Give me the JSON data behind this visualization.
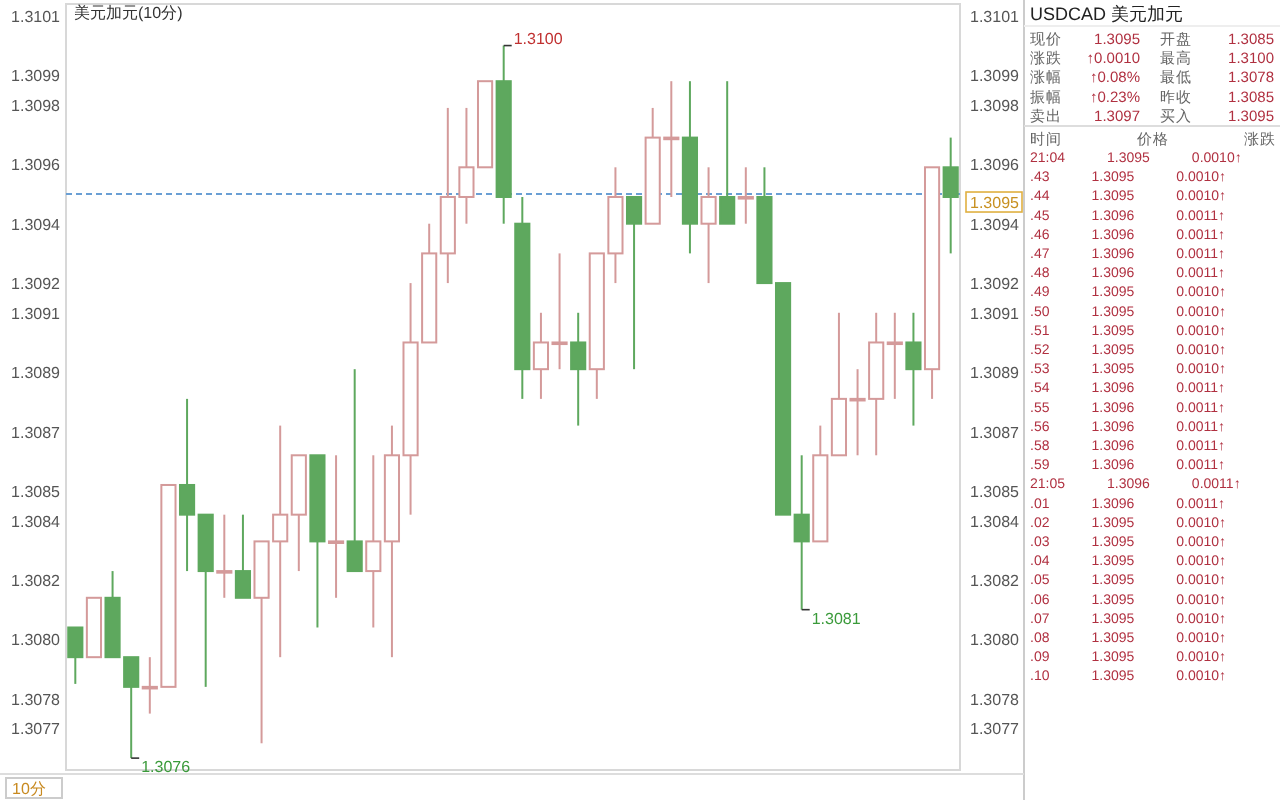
{
  "chart_data": [
    {
      "type": "candlestick",
      "title": "美元加元(10分)",
      "categories": [
        null,
        null,
        null,
        null,
        null,
        null,
        null,
        null,
        null,
        null,
        null,
        null,
        null,
        null,
        null,
        null,
        null,
        null,
        null,
        null,
        null,
        null,
        null,
        null,
        null,
        null,
        null,
        null,
        null,
        null,
        null,
        null,
        null,
        null,
        null,
        null,
        null,
        null,
        null,
        null,
        null,
        null,
        null,
        null,
        null,
        null,
        null,
        null
      ],
      "ohlc": [
        [
          1.30804,
          1.30804,
          1.30785,
          1.30794
        ],
        [
          1.30794,
          1.30814,
          1.30794,
          1.30814
        ],
        [
          1.30814,
          1.30823,
          1.30794,
          1.30794
        ],
        [
          1.30794,
          1.30794,
          1.3076,
          1.30784
        ],
        [
          1.30784,
          1.30794,
          1.30775,
          1.30784
        ],
        [
          1.30784,
          1.30852,
          1.30784,
          1.30852
        ],
        [
          1.30852,
          1.30881,
          1.30823,
          1.30842
        ],
        [
          1.30842,
          1.30842,
          1.30784,
          1.30823
        ],
        [
          1.30823,
          1.30842,
          1.30814,
          1.30823
        ],
        [
          1.30823,
          1.30842,
          1.30814,
          1.30814
        ],
        [
          1.30814,
          1.30833,
          1.30765,
          1.30833
        ],
        [
          1.30833,
          1.30872,
          1.30794,
          1.30842
        ],
        [
          1.30842,
          1.30862,
          1.30823,
          1.30862
        ],
        [
          1.30862,
          1.30862,
          1.30804,
          1.30833
        ],
        [
          1.30833,
          1.30862,
          1.30814,
          1.30833
        ],
        [
          1.30833,
          1.30891,
          1.30823,
          1.30823
        ],
        [
          1.30823,
          1.30862,
          1.30804,
          1.30833
        ],
        [
          1.30833,
          1.30872,
          1.30794,
          1.30862
        ],
        [
          1.30862,
          1.3092,
          1.30842,
          1.309
        ],
        [
          1.309,
          1.3094,
          1.309,
          1.3093
        ],
        [
          1.3093,
          1.30979,
          1.3092,
          1.30949
        ],
        [
          1.30949,
          1.30979,
          1.3094,
          1.30959
        ],
        [
          1.30959,
          1.30988,
          1.30959,
          1.30988
        ],
        [
          1.30988,
          1.31,
          1.3094,
          1.30949
        ],
        [
          1.3094,
          1.30949,
          1.30881,
          1.30891
        ],
        [
          1.30891,
          1.3091,
          1.30881,
          1.309
        ],
        [
          1.309,
          1.3093,
          1.30891,
          1.309
        ],
        [
          1.309,
          1.3091,
          1.30872,
          1.30891
        ],
        [
          1.30891,
          1.3093,
          1.30881,
          1.3093
        ],
        [
          1.3093,
          1.30959,
          1.3092,
          1.30949
        ],
        [
          1.30949,
          1.30949,
          1.30891,
          1.3094
        ],
        [
          1.3094,
          1.30979,
          1.3094,
          1.30969
        ],
        [
          1.30969,
          1.30988,
          1.30949,
          1.30969
        ],
        [
          1.30969,
          1.30988,
          1.3093,
          1.3094
        ],
        [
          1.3094,
          1.30959,
          1.3092,
          1.30949
        ],
        [
          1.30949,
          1.30988,
          1.3094,
          1.3094
        ],
        [
          1.30949,
          1.30959,
          1.3094,
          1.30949
        ],
        [
          1.30949,
          1.30959,
          1.3092,
          1.3092
        ],
        [
          1.3092,
          1.3092,
          1.30842,
          1.30842
        ],
        [
          1.30842,
          1.30862,
          1.3081,
          1.30833
        ],
        [
          1.30833,
          1.30872,
          1.30833,
          1.30862
        ],
        [
          1.30862,
          1.3091,
          1.30862,
          1.30881
        ],
        [
          1.30881,
          1.30891,
          1.30862,
          1.30881
        ],
        [
          1.30881,
          1.3091,
          1.30862,
          1.309
        ],
        [
          1.309,
          1.3091,
          1.30881,
          1.309
        ],
        [
          1.309,
          1.3091,
          1.30872,
          1.30891
        ],
        [
          1.30891,
          1.30959,
          1.30881,
          1.30959
        ],
        [
          1.30959,
          1.30969,
          1.3093,
          1.30949
        ]
      ],
      "ylim": [
        1.30756,
        1.31014
      ],
      "yticks": [
        1.3101,
        1.3099,
        1.3098,
        1.3096,
        1.3094,
        1.3092,
        1.3091,
        1.3089,
        1.3087,
        1.3085,
        1.3084,
        1.3082,
        {
          "value": 1.308,
          "label": "1.3080"
        },
        1.3078,
        1.3077
      ],
      "y2lim": [
        1.30756,
        1.31014
      ],
      "y2ticks": [
        1.3101,
        1.3099,
        1.3098,
        1.3096,
        1.3094,
        1.3092,
        1.3091,
        1.3089,
        1.3087,
        1.3085,
        1.3084,
        1.3082,
        {
          "value": 1.308,
          "label": "1.3080"
        },
        1.3078,
        1.3077
      ],
      "ref_lines": [
        {
          "axis": "y2",
          "value": 1.3095,
          "label": "1.3095",
          "color": "#6a9fd4",
          "line_style": "dashed"
        }
      ],
      "annotations": [
        "1.3100",
        "1.3076",
        "1.3081",
        "10分"
      ]
    },
    {
      "type": "other",
      "title": "USDCAD 美元加元",
      "annotations": [
        "现价",
        "1.3095",
        "开盘",
        "1.3085",
        "涨跌",
        "↑0.0010",
        "最高",
        "1.3100",
        "涨幅",
        "↑0.08%",
        "最低",
        "1.3078",
        "振幅",
        "↑0.23%",
        "昨收",
        "1.3085",
        "卖出",
        "1.3097",
        "买入",
        "1.3095",
        "时间 价格 涨跌",
        "21:04 1.3095 0.0010↑",
        ".43 1.3095 0.0010↑",
        ".44 1.3095 0.0010↑",
        ".45 1.3096 0.0011↑",
        ".46 1.3096 0.0011↑",
        ".47 1.3096 0.0011↑",
        ".48 1.3096 0.0011↑",
        ".49 1.3095 0.0010↑",
        ".50 1.3095 0.0010↑",
        ".51 1.3095 0.0010↑",
        ".52 1.3095 0.0010↑",
        ".53 1.3095 0.0010↑",
        ".54 1.3096 0.0011↑",
        ".55 1.3096 0.0011↑",
        ".56 1.3096 0.0011↑",
        ".58 1.3096 0.0011↑",
        ".59 1.3096 0.0011↑",
        "21:05 1.3096 0.0011↑",
        ".01 1.3096 0.0011↑",
        ".02 1.3095 0.0010↑",
        ".03 1.3095 0.0010↑",
        ".04 1.3095 0.0010↑",
        ".05 1.3095 0.0010↑",
        ".06 1.3095 0.0010↑",
        ".07 1.3095 0.0010↑",
        ".08 1.3095 0.0010↑",
        ".09 1.3095 0.0010↑",
        ".10 1.3095 0.0010↑"
      ]
    }
  ]
}
